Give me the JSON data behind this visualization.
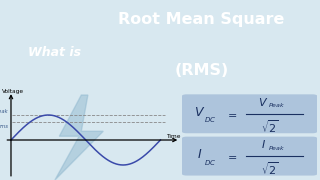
{
  "bg_top_color": "#3a7f95",
  "bg_bottom_color": "#d8e8f0",
  "title_main": "Root Mean Square",
  "title_sub": "(RMS)",
  "what_is": "What is",
  "title_color": "#ffffff",
  "what_is_color": "#ffffff",
  "sine_color": "#3a4aaa",
  "axis_color": "#000000",
  "dashed_color": "#888888",
  "voltage_label": "Voltage",
  "time_label": "Time",
  "peak_label": "Peak",
  "rms_label": "rms",
  "formula_bg": "#adc4dc",
  "bolt_color": "#8ab4cc",
  "bolt_alpha": 0.45,
  "label_color": "#3a5a8a"
}
